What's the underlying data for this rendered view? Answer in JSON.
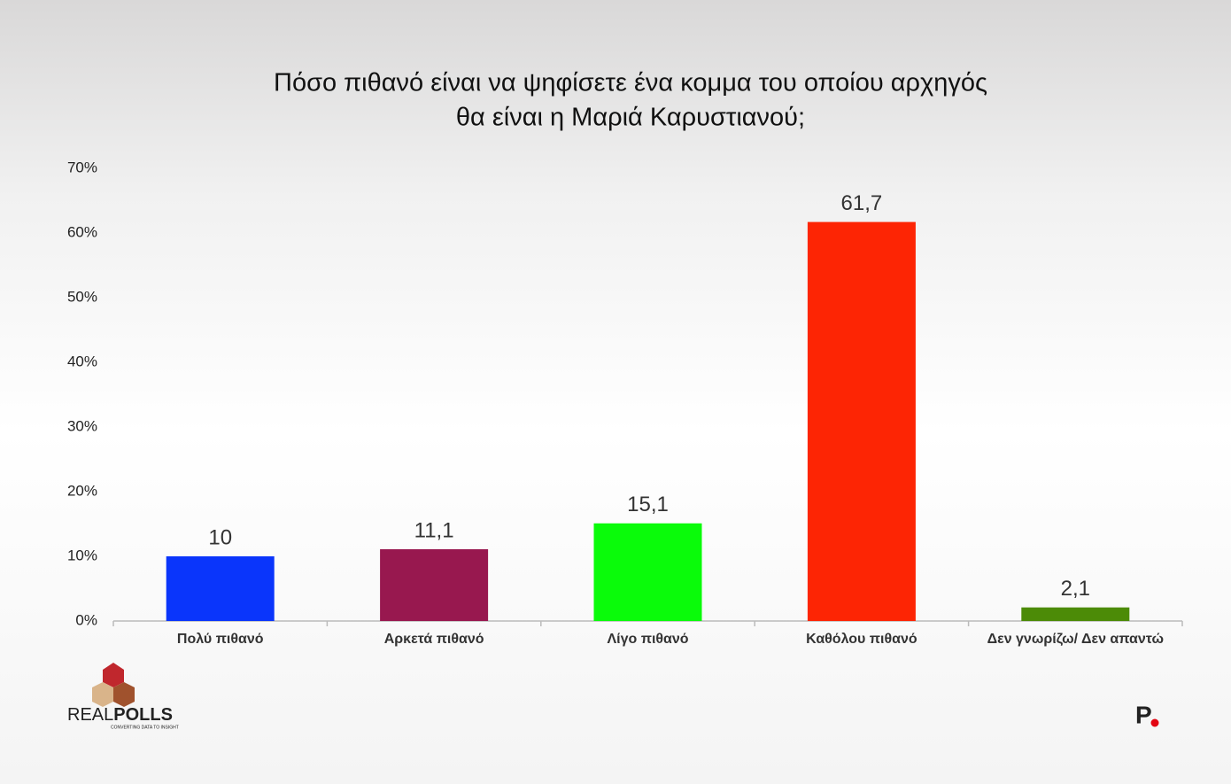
{
  "chart_data": {
    "type": "bar",
    "title": [
      "Πόσο πιθανό είναι να ψηφίσετε ένα κομμα του οποίου αρχηγός",
      "θα είναι η Mαριά Καρυστιανού;"
    ],
    "categories": [
      "Πολύ πιθανό",
      "Αρκετά πιθανό",
      "Λίγο πιθανό",
      "Καθόλου πιθανό",
      "Δεν γνωρίζω/ Δεν απαντώ"
    ],
    "values": [
      10,
      11.1,
      15.1,
      61.7,
      2.1
    ],
    "value_labels": [
      "10",
      "11,1",
      "15,1",
      "61,7",
      "2,1"
    ],
    "colors": [
      "#0a35fb",
      "#98184f",
      "#0afb0a",
      "#fd2504",
      "#4c8b07"
    ],
    "ylim": [
      0,
      70
    ],
    "yticks": [
      {
        "value": 0,
        "label": "0%"
      },
      {
        "value": 10,
        "label": "10%"
      },
      {
        "value": 20,
        "label": "20%"
      },
      {
        "value": 30,
        "label": "30%"
      },
      {
        "value": 40,
        "label": "40%"
      },
      {
        "value": 50,
        "label": "50%"
      },
      {
        "value": 60,
        "label": "60%"
      },
      {
        "value": 70,
        "label": "70%"
      }
    ],
    "grid": false
  },
  "branding": {
    "left_light": "REAL",
    "left_bold": "POLLS",
    "tagline": "CONVERTING DATA TO INSIGHT",
    "right": "P"
  }
}
